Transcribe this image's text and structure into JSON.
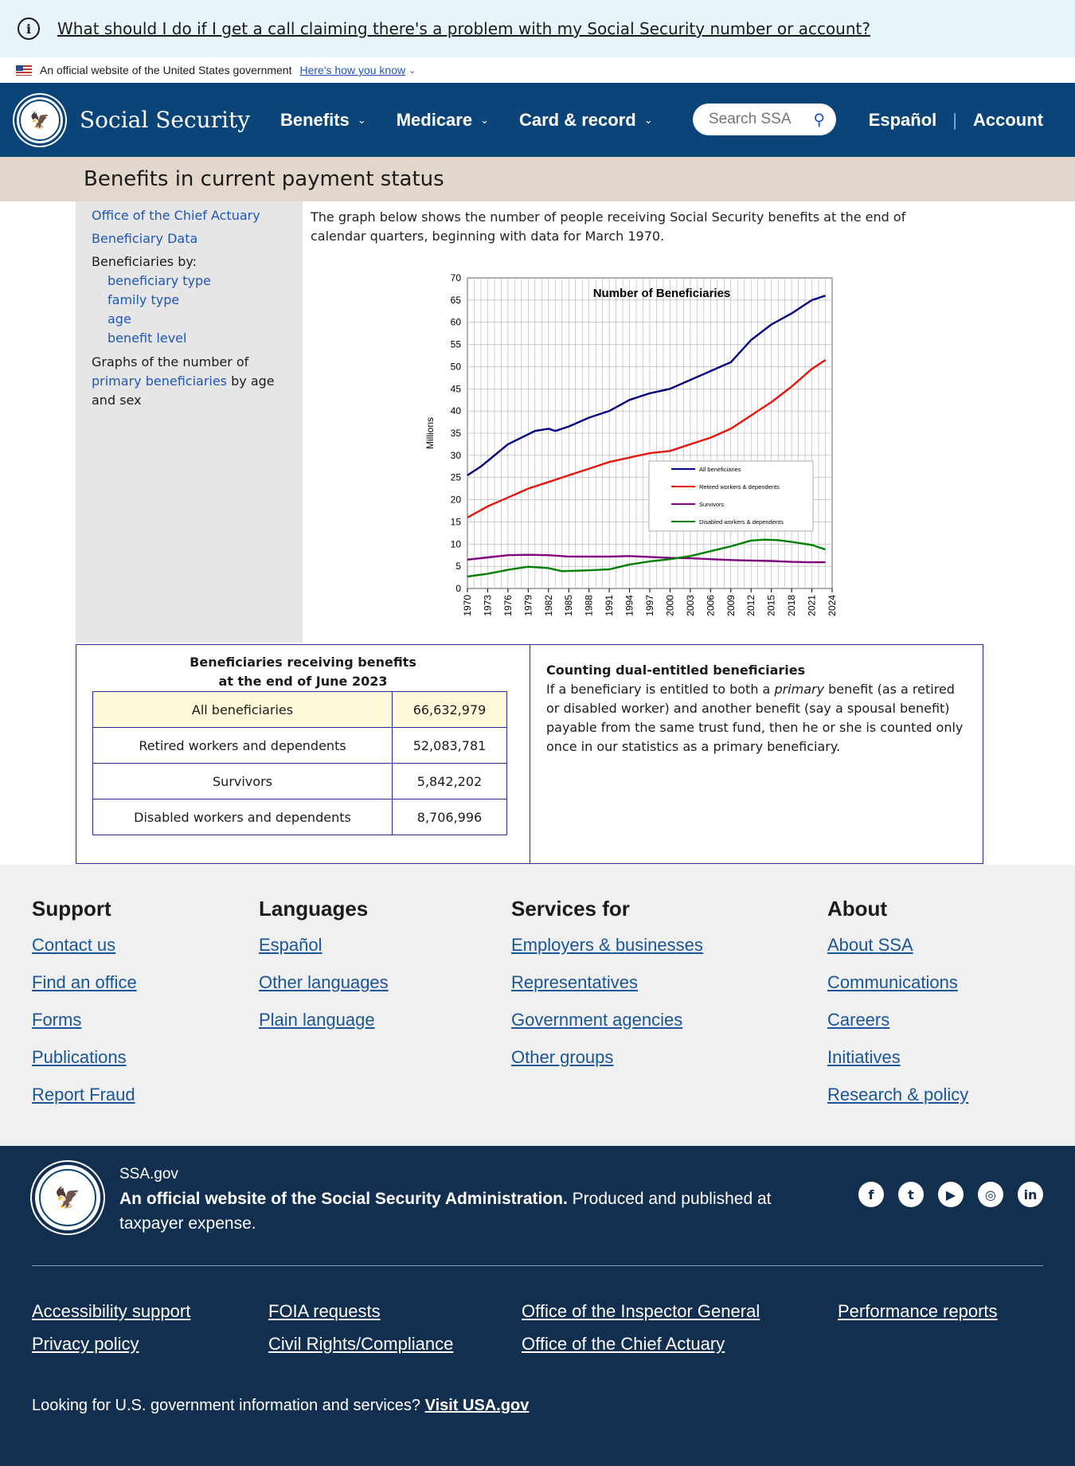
{
  "alert": {
    "text": "What should I do if I get a call claiming there's a problem with my Social Security number or account?"
  },
  "gov_banner": {
    "text": "An official website of the United States government",
    "link": "Here's how you know"
  },
  "header": {
    "brand": "Social Security",
    "nav": [
      {
        "label": "Benefits"
      },
      {
        "label": "Medicare"
      },
      {
        "label": "Card & record"
      }
    ],
    "search_placeholder": "Search SSA",
    "espanol": "Español",
    "account": "Account"
  },
  "page_title": "Benefits in current payment status",
  "sidebar": {
    "link1": "Office of the Chief Actuary",
    "link2": "Beneficiary Data",
    "by_label": "Beneficiaries by:",
    "by_items": [
      "beneficiary type",
      "family type",
      "age",
      "benefit level"
    ],
    "graphs_pre": "Graphs of the number of",
    "graphs_link": "primary beneficiaries",
    "graphs_post": " by age and sex"
  },
  "intro": "The graph below shows the number of people receiving Social Security benefits at the end of calendar quarters, beginning with data for March 1970.",
  "chart_data": {
    "type": "line",
    "title": "Number of Beneficiaries",
    "ylabel": "Millions",
    "xlabel": "",
    "ylim": [
      0,
      70
    ],
    "yticks": [
      0,
      5,
      10,
      15,
      20,
      25,
      30,
      35,
      40,
      45,
      50,
      55,
      60,
      65,
      70
    ],
    "xlim": [
      1970,
      2024
    ],
    "xticks": [
      "1970",
      "1973",
      "1976",
      "1979",
      "1982",
      "1985",
      "1988",
      "1991",
      "1994",
      "1997",
      "2000",
      "2003",
      "2006",
      "2009",
      "2012",
      "2015",
      "2018",
      "2021",
      "2024"
    ],
    "grid": true,
    "legend_position": "center-right",
    "series": [
      {
        "name": "All beneficiaries",
        "color": "#000080",
        "x": [
          1970,
          1972,
          1974,
          1976,
          1978,
          1980,
          1982,
          1983,
          1985,
          1988,
          1991,
          1994,
          1997,
          2000,
          2003,
          2006,
          2009,
          2012,
          2015,
          2018,
          2020,
          2021,
          2023
        ],
        "y": [
          25.5,
          27.5,
          30,
          32.5,
          34,
          35.5,
          36,
          35.5,
          36.5,
          38.5,
          40,
          42.5,
          44,
          45,
          47,
          49,
          51,
          56,
          59.5,
          62,
          64,
          65,
          66
        ]
      },
      {
        "name": "Retired workers & dependents",
        "color": "#e8140c",
        "x": [
          1970,
          1973,
          1976,
          1979,
          1982,
          1985,
          1988,
          1991,
          1994,
          1997,
          2000,
          2003,
          2006,
          2009,
          2012,
          2015,
          2018,
          2021,
          2023
        ],
        "y": [
          16,
          18.5,
          20.5,
          22.5,
          24,
          25.5,
          27,
          28.5,
          29.5,
          30.5,
          31,
          32.5,
          34,
          36,
          39,
          42,
          45.5,
          49.5,
          51.5
        ]
      },
      {
        "name": "Survivors",
        "color": "#800080",
        "x": [
          1970,
          1973,
          1976,
          1979,
          1982,
          1985,
          1988,
          1991,
          1994,
          1997,
          2000,
          2003,
          2006,
          2009,
          2012,
          2015,
          2018,
          2021,
          2023
        ],
        "y": [
          6.5,
          7,
          7.5,
          7.6,
          7.5,
          7.2,
          7.2,
          7.2,
          7.3,
          7.1,
          6.9,
          6.8,
          6.6,
          6.4,
          6.3,
          6.2,
          6,
          5.9,
          5.9
        ]
      },
      {
        "name": "Disabled workers & dependents",
        "color": "#008000",
        "x": [
          1970,
          1973,
          1976,
          1979,
          1982,
          1984,
          1988,
          1991,
          1994,
          1997,
          2000,
          2003,
          2006,
          2009,
          2012,
          2014,
          2016,
          2018,
          2021,
          2023
        ],
        "y": [
          2.7,
          3.3,
          4.2,
          4.9,
          4.6,
          3.9,
          4.1,
          4.3,
          5.4,
          6.1,
          6.6,
          7.3,
          8.4,
          9.5,
          10.8,
          11,
          10.9,
          10.5,
          9.8,
          8.8
        ]
      }
    ]
  },
  "summary_table": {
    "caption_line1": "Beneficiaries receiving benefits",
    "caption_line2": "at the end of June 2023",
    "rows": [
      {
        "label": "All beneficiaries",
        "value": "66,632,979"
      },
      {
        "label": "Retired workers and dependents",
        "value": "52,083,781"
      },
      {
        "label": "Survivors",
        "value": "5,842,202"
      },
      {
        "label": "Disabled workers and dependents",
        "value": "8,706,996"
      }
    ]
  },
  "dual_entitled": {
    "heading": "Counting dual-entitled beneficiaries",
    "text_pre": "If a beneficiary is entitled to both a ",
    "text_em": "primary",
    "text_post": " benefit (as a retired or disabled worker) and another benefit (say a spousal benefit) payable from the same trust fund, then he or she is counted only once in our statistics as a primary beneficiary."
  },
  "footer_links": {
    "support": {
      "heading": "Support",
      "items": [
        "Contact us",
        "Find an office",
        "Forms",
        "Publications",
        "Report Fraud"
      ]
    },
    "languages": {
      "heading": "Languages",
      "items": [
        "Español",
        "Other languages",
        "Plain language"
      ]
    },
    "services": {
      "heading": "Services for",
      "items": [
        "Employers & businesses",
        "Representatives",
        "Government agencies",
        "Other groups"
      ]
    },
    "about": {
      "heading": "About",
      "items": [
        "About SSA",
        "Communications",
        "Careers",
        "Initiatives",
        "Research & policy"
      ]
    }
  },
  "footer_bottom": {
    "site": "SSA.gov",
    "official_bold": "An official website of the Social Security Administration.",
    "official_rest": " Produced and published at taxpayer expense.",
    "socials": [
      "facebook-icon",
      "twitter-icon",
      "youtube-icon",
      "instagram-icon",
      "linkedin-icon"
    ],
    "links": [
      "Accessibility support",
      "Privacy policy",
      "FOIA requests",
      "Civil Rights/Compliance",
      "Office of the Inspector General",
      "Office of the Chief Actuary",
      "Performance reports"
    ],
    "usagov_text": "Looking for U.S. government information and services?",
    "usagov_link": "Visit USA.gov"
  }
}
